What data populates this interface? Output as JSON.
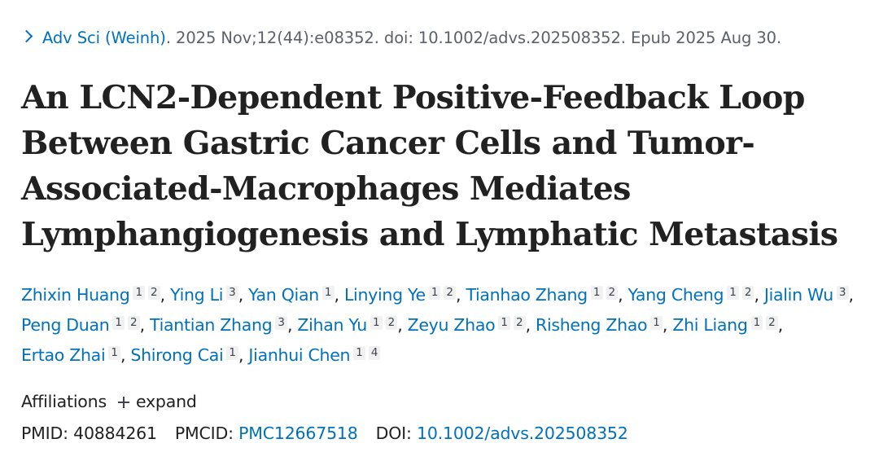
{
  "citation": {
    "journal": "Adv Sci (Weinh)",
    "details": ". 2025 Nov;12(44):e08352. doi: 10.1002/advs.202508352. Epub 2025 Aug 30."
  },
  "title": "An LCN2-Dependent Positive-Feedback Loop Between Gastric Cancer Cells and Tumor-Associated-Macrophages Mediates Lymphangiogenesis and Lymphatic Metastasis",
  "authors": [
    {
      "name": "Zhixin Huang",
      "affs": [
        "1",
        "2"
      ]
    },
    {
      "name": "Ying Li",
      "affs": [
        "3"
      ]
    },
    {
      "name": "Yan Qian",
      "affs": [
        "1"
      ]
    },
    {
      "name": "Linying Ye",
      "affs": [
        "1",
        "2"
      ]
    },
    {
      "name": "Tianhao Zhang",
      "affs": [
        "1",
        "2"
      ]
    },
    {
      "name": "Yang Cheng",
      "affs": [
        "1",
        "2"
      ]
    },
    {
      "name": "Jialin Wu",
      "affs": [
        "3"
      ]
    },
    {
      "name": "Peng Duan",
      "affs": [
        "1",
        "2"
      ]
    },
    {
      "name": "Tiantian Zhang",
      "affs": [
        "3"
      ]
    },
    {
      "name": "Zihan Yu",
      "affs": [
        "1",
        "2"
      ]
    },
    {
      "name": "Zeyu Zhao",
      "affs": [
        "1",
        "2"
      ]
    },
    {
      "name": "Risheng Zhao",
      "affs": [
        "1"
      ]
    },
    {
      "name": "Zhi Liang",
      "affs": [
        "1",
        "2"
      ]
    },
    {
      "name": "Ertao Zhai",
      "affs": [
        "1"
      ]
    },
    {
      "name": "Shirong Cai",
      "affs": [
        "1"
      ]
    },
    {
      "name": "Jianhui Chen",
      "affs": [
        "1",
        "4"
      ]
    }
  ],
  "affiliations": {
    "label": "Affiliations",
    "expand_label": "expand"
  },
  "identifiers": {
    "pmid_label": "PMID:",
    "pmid": "40884261",
    "pmcid_label": "PMCID:",
    "pmcid": "PMC12667518",
    "doi_label": "DOI:",
    "doi": "10.1002/advs.202508352"
  }
}
